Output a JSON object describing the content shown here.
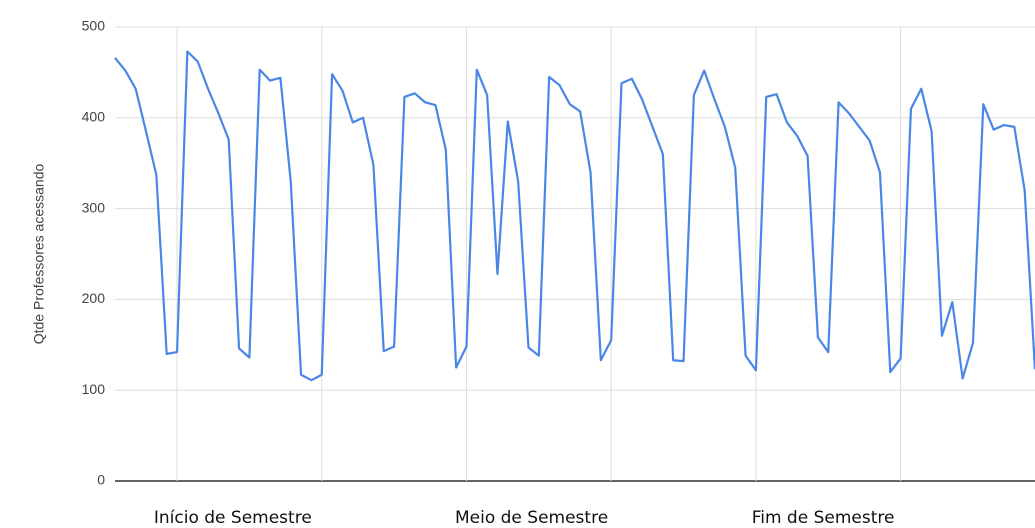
{
  "chart_data": {
    "type": "line",
    "y_label": "Qtde Professores acessando",
    "x": [
      0,
      1,
      2,
      3,
      4,
      5,
      6,
      7,
      8,
      9,
      10,
      11,
      12,
      13,
      14,
      15,
      16,
      17,
      18,
      19,
      20,
      21,
      22,
      23,
      24,
      25,
      26,
      27,
      28,
      29,
      30,
      31,
      32,
      33,
      34,
      35,
      36,
      37,
      38,
      39,
      40,
      41,
      42,
      43,
      44,
      45,
      46,
      47,
      48,
      49,
      50,
      51,
      52,
      53,
      54,
      55,
      56,
      57,
      58,
      59,
      60,
      61,
      62,
      63,
      64,
      65,
      66,
      67,
      68,
      69,
      70,
      71,
      72,
      73,
      74,
      75,
      76,
      77,
      78,
      79,
      80,
      81,
      82,
      83,
      84,
      85,
      86,
      87,
      88,
      89
    ],
    "series": [
      {
        "color": "#4a86e8",
        "values": [
          466,
          452,
          432,
          385,
          337,
          140,
          142,
          473,
          462,
          432,
          405,
          376,
          146,
          136,
          453,
          441,
          444,
          330,
          117,
          111,
          117,
          448,
          430,
          395,
          400,
          348,
          143,
          148,
          423,
          427,
          417,
          414,
          365,
          125,
          148,
          453,
          425,
          228,
          396,
          330,
          147,
          138,
          445,
          436,
          415,
          407,
          340,
          133,
          155,
          438,
          443,
          420,
          390,
          360,
          133,
          132,
          425,
          452,
          420,
          390,
          345,
          138,
          122,
          423,
          426,
          395,
          380,
          358,
          158,
          142,
          417,
          405,
          390,
          375,
          340,
          120,
          135,
          410,
          432,
          385,
          160,
          197,
          113,
          152,
          415,
          387,
          392,
          390,
          320,
          123
        ]
      }
    ],
    "xlim": [
      0,
      89
    ],
    "x_gridlines": [
      6,
      20,
      34,
      48,
      62,
      76
    ],
    "xticks": [
      {
        "value": 11.4,
        "label": "Início de Semestre"
      },
      {
        "value": 40.3,
        "label": "Meio de Semestre"
      },
      {
        "value": 68.5,
        "label": "Fim de Semestre"
      }
    ],
    "ylim": [
      0,
      500
    ],
    "yticks": [
      0,
      100,
      200,
      300,
      400,
      500
    ],
    "grid": true
  }
}
